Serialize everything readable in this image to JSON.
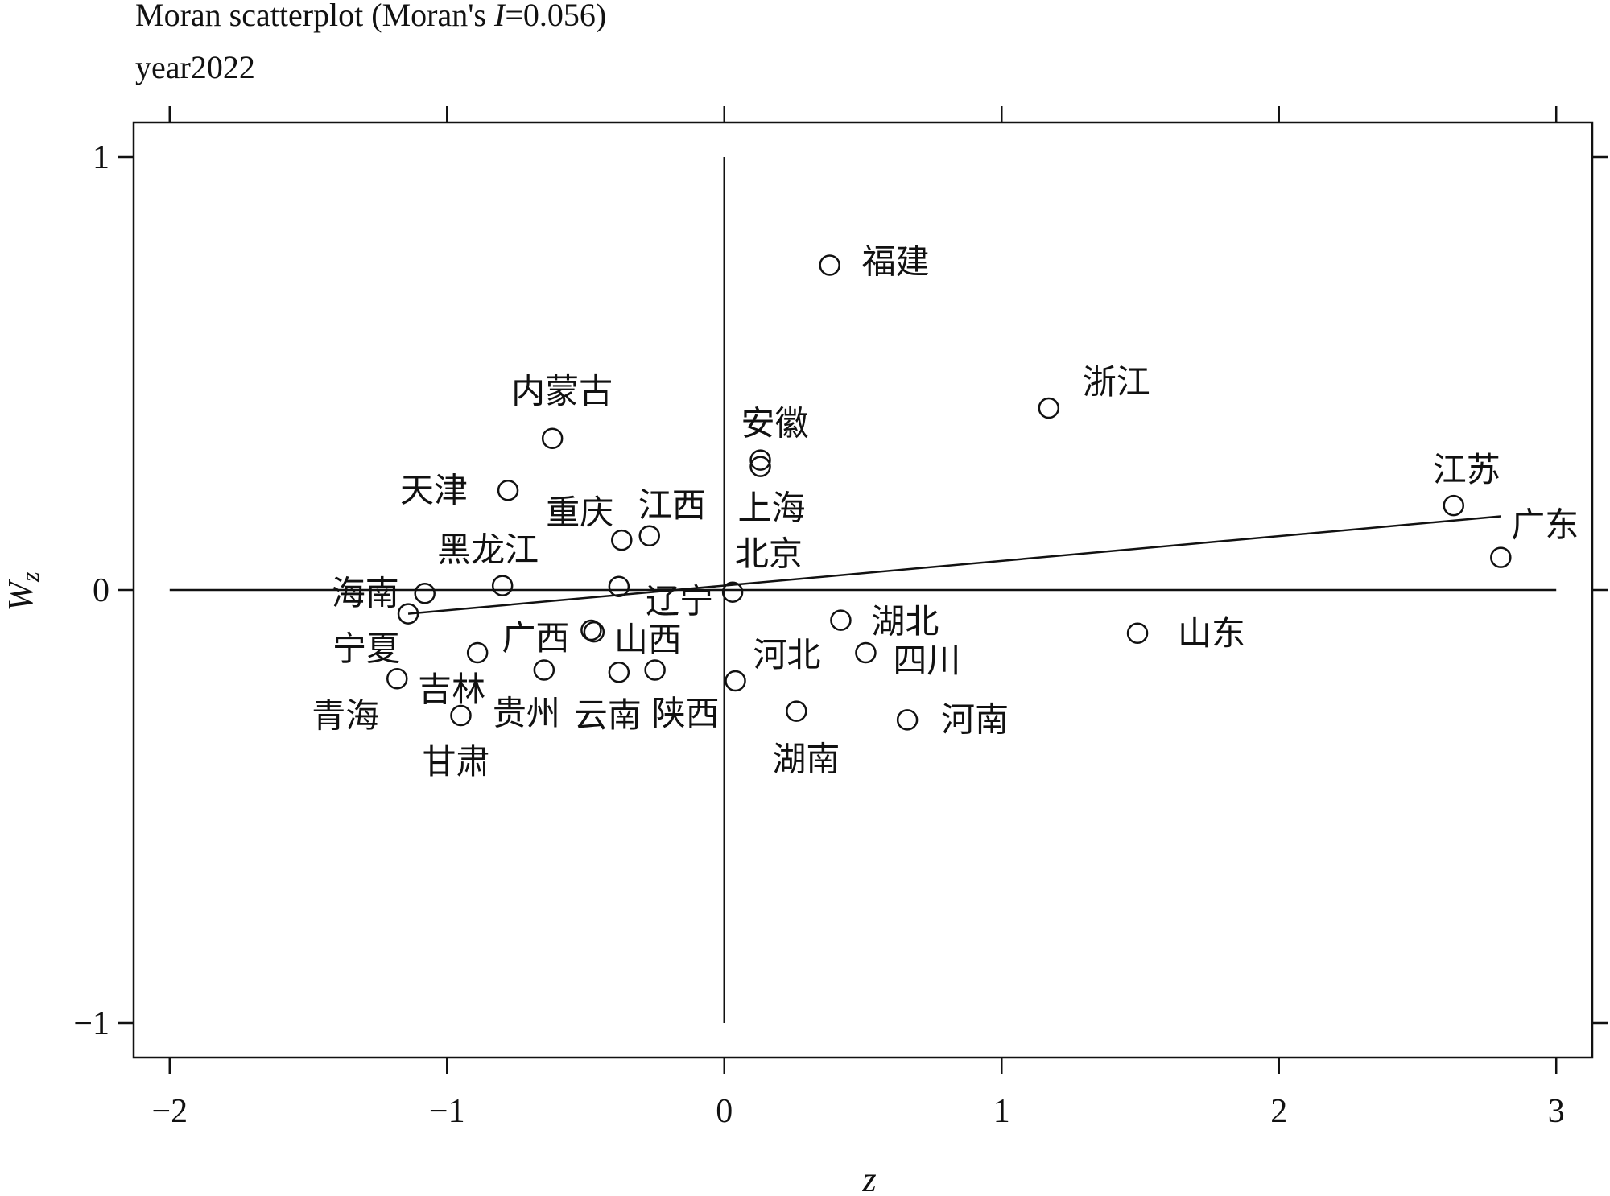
{
  "chart_data": {
    "type": "scatter",
    "title_prefix": "Moran scatterplot (Moran's ",
    "title_italic": "I",
    "title_suffix": "=0.056)",
    "subtitle": "year2022",
    "xlabel": "z",
    "ylabel_main": "W",
    "ylabel_sub": "z",
    "xlim": [
      -2.13,
      3.13
    ],
    "ylim": [
      -1.08,
      1.08
    ],
    "x_ticks": [
      {
        "value": -2,
        "label": "−2"
      },
      {
        "value": -1,
        "label": "−1"
      },
      {
        "value": 0,
        "label": "0"
      },
      {
        "value": 1,
        "label": "1"
      },
      {
        "value": 2,
        "label": "2"
      },
      {
        "value": 3,
        "label": "3"
      }
    ],
    "y_ticks": [
      {
        "value": -1,
        "label": "−1"
      },
      {
        "value": 0,
        "label": "0"
      },
      {
        "value": 1,
        "label": "1"
      }
    ],
    "reference_lines": {
      "x": 0,
      "y": 0
    },
    "fit_line": {
      "x": [
        -1.14,
        2.8
      ],
      "y": [
        -0.055,
        0.17
      ]
    },
    "points": [
      {
        "name": "福建",
        "x": 0.38,
        "y": 0.75
      },
      {
        "name": "浙江",
        "x": 1.17,
        "y": 0.42
      },
      {
        "name": "内蒙古",
        "x": -0.62,
        "y": 0.35
      },
      {
        "name": "安徽",
        "x": 0.13,
        "y": 0.3
      },
      {
        "name": "上海",
        "x": 0.13,
        "y": 0.285
      },
      {
        "name": "天津",
        "x": -0.78,
        "y": 0.23
      },
      {
        "name": "江苏",
        "x": 2.63,
        "y": 0.195
      },
      {
        "name": "重庆",
        "x": -0.37,
        "y": 0.115
      },
      {
        "name": "江西",
        "x": -0.27,
        "y": 0.125
      },
      {
        "name": "广东",
        "x": 2.8,
        "y": 0.075
      },
      {
        "name": "黑龙江",
        "x": -0.8,
        "y": 0.01
      },
      {
        "name": "北京",
        "x": -0.38,
        "y": 0.008
      },
      {
        "name": "海南",
        "x": -1.08,
        "y": -0.008
      },
      {
        "name": "辽宁",
        "x": 0.03,
        "y": -0.005
      },
      {
        "name": "宁夏",
        "x": -1.14,
        "y": -0.055
      },
      {
        "name": "湖北",
        "x": 0.42,
        "y": -0.07
      },
      {
        "name": "山东",
        "x": 1.49,
        "y": -0.1
      },
      {
        "name": "广西",
        "x": -0.48,
        "y": -0.093
      },
      {
        "name": "山西",
        "x": -0.47,
        "y": -0.097
      },
      {
        "name": "吉林",
        "x": -0.89,
        "y": -0.145
      },
      {
        "name": "四川",
        "x": 0.51,
        "y": -0.145
      },
      {
        "name": "贵州",
        "x": -0.65,
        "y": -0.185
      },
      {
        "name": "云南",
        "x": -0.38,
        "y": -0.19
      },
      {
        "name": "陕西",
        "x": -0.25,
        "y": -0.185
      },
      {
        "name": "青海",
        "x": -1.18,
        "y": -0.205
      },
      {
        "name": "河北",
        "x": 0.04,
        "y": -0.21
      },
      {
        "name": "甘肃",
        "x": -0.95,
        "y": -0.29
      },
      {
        "name": "湖南",
        "x": 0.26,
        "y": -0.28
      },
      {
        "name": "河南",
        "x": 0.66,
        "y": -0.3
      }
    ]
  }
}
